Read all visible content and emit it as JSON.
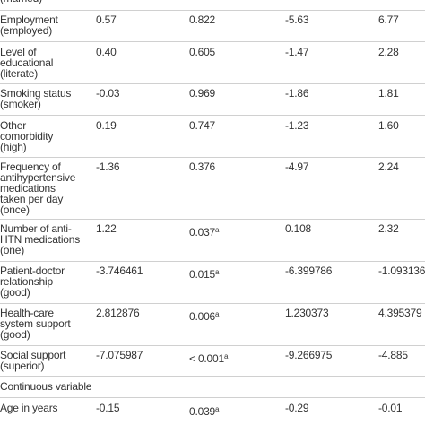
{
  "table": {
    "rows": [
      {
        "label": [
          "(married)"
        ],
        "cells": []
      },
      {
        "label": [
          "Employment",
          "(employed)"
        ],
        "cells": [
          "0.57",
          "0.822",
          "-5.63",
          "6.77"
        ]
      },
      {
        "label": [
          "Level of",
          "educational",
          "(literate)"
        ],
        "cells": [
          "0.40",
          "0.605",
          "-1.47",
          "2.28"
        ]
      },
      {
        "label": [
          "Smoking status",
          "(smoker)"
        ],
        "cells": [
          "-0.03",
          "0.969",
          "-1.86",
          "1.81"
        ]
      },
      {
        "label": [
          "Other",
          "comorbidity",
          "(high)"
        ],
        "cells": [
          "0.19",
          "0.747",
          "-1.23",
          "1.60"
        ]
      },
      {
        "label": [
          "Frequency of",
          "antihypertensive",
          "medications",
          "taken per day",
          "(once)"
        ],
        "cells": [
          "-1.36",
          "0.376",
          "-4.97",
          "2.24"
        ]
      },
      {
        "label": [
          "Number of anti-",
          "HTN medications",
          "(one)"
        ],
        "cells": [
          "1.22",
          "0.037",
          "0.108",
          "2.32"
        ],
        "sup": "a"
      },
      {
        "label": [
          "Patient-doctor",
          "relationship",
          "(good)"
        ],
        "cells": [
          "-3.746461",
          "0.015",
          "-6.399786",
          "-1.093136"
        ],
        "sup": "a"
      },
      {
        "label": [
          "Health-care",
          "system support",
          "(good)"
        ],
        "cells": [
          "2.812876",
          "0.006",
          "1.230373",
          "4.395379"
        ],
        "sup": "a"
      },
      {
        "label": [
          "Social support",
          "(superior)"
        ],
        "cells": [
          "-7.075987",
          "< 0.001",
          "-9.266975",
          "-4.885"
        ],
        "sup": "a"
      },
      {
        "label": [
          "Continuous variable"
        ],
        "cells": []
      },
      {
        "label": [
          "Age in years"
        ],
        "cells": [
          "-0.15",
          "0.039",
          "-0.29",
          "-0.01"
        ],
        "sup": "a"
      }
    ]
  }
}
